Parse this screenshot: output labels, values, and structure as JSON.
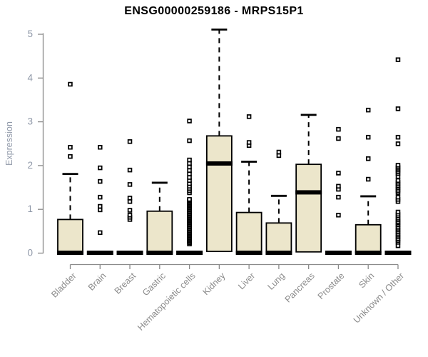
{
  "chart_data": {
    "type": "boxplot",
    "title": "ENSG00000259186 - MRPS15P1",
    "ylabel": "Expression",
    "xlabel": "",
    "ylim": [
      0,
      5
    ],
    "yticks": [
      0,
      1,
      2,
      3,
      4,
      5
    ],
    "grid": "off",
    "x_label_rotation": 45,
    "colors": {
      "box_fill": "#ECE6CB",
      "box_stroke": "#000000",
      "axis": "#8a8a8a",
      "y_tick_label": "#8f98a8",
      "x_tick_label": "#8a8a8a",
      "title": "#000000"
    },
    "categories": [
      "Bladder",
      "Brain",
      "Breast",
      "Gastric",
      "Hematopoietic cells",
      "Kidney",
      "Liver",
      "Lung",
      "Pancreas",
      "Prostate",
      "Skin",
      "Unknown / Other"
    ],
    "boxes": [
      {
        "category": "Bladder",
        "q1": 0,
        "median": 0,
        "q3": 0.76,
        "whisker_low": 0,
        "whisker_high": 1.8,
        "outliers": [
          2.2,
          2.41,
          3.85
        ]
      },
      {
        "category": "Brain",
        "q1": 0,
        "median": 0,
        "q3": 0,
        "whisker_low": 0,
        "whisker_high": 0,
        "outliers": [
          0.46,
          0.98,
          1.06,
          1.27,
          1.63,
          1.94,
          2.41
        ]
      },
      {
        "category": "Breast",
        "q1": 0,
        "median": 0,
        "q3": 0,
        "whisker_low": 0,
        "whisker_high": 0,
        "outliers": [
          0.76,
          0.81,
          0.86,
          0.97,
          1.17,
          1.25,
          1.56,
          1.89,
          2.54
        ]
      },
      {
        "category": "Gastric",
        "q1": 0,
        "median": 0,
        "q3": 0.95,
        "whisker_low": 0,
        "whisker_high": 1.6,
        "outliers": []
      },
      {
        "category": "Hematopoietic cells",
        "q1": 0,
        "median": 0,
        "q3": 0,
        "whisker_low": 0,
        "whisker_high": 0,
        "outliers": [
          0.2,
          0.23,
          0.25,
          0.28,
          0.3,
          0.33,
          0.35,
          0.38,
          0.4,
          0.43,
          0.45,
          0.48,
          0.5,
          0.53,
          0.55,
          0.58,
          0.6,
          0.63,
          0.65,
          0.68,
          0.7,
          0.73,
          0.75,
          0.78,
          0.8,
          0.83,
          0.85,
          0.88,
          0.9,
          0.93,
          0.95,
          0.98,
          1.0,
          1.03,
          1.05,
          1.08,
          1.1,
          1.13,
          1.15,
          1.18,
          1.2,
          1.22,
          1.37,
          1.42,
          1.47,
          1.52,
          1.58,
          1.65,
          1.72,
          1.8,
          1.88,
          1.96,
          2.04,
          2.12,
          2.56,
          3.01
        ]
      },
      {
        "category": "Kidney",
        "q1": 0.03,
        "median": 2.04,
        "q3": 2.67,
        "whisker_low": 0,
        "whisker_high": 5.1,
        "outliers": []
      },
      {
        "category": "Liver",
        "q1": 0,
        "median": 0,
        "q3": 0.92,
        "whisker_low": 0,
        "whisker_high": 2.08,
        "outliers": [
          2.45,
          2.52,
          3.11
        ]
      },
      {
        "category": "Lung",
        "q1": 0,
        "median": 0,
        "q3": 0.68,
        "whisker_low": 0,
        "whisker_high": 1.3,
        "outliers": [
          2.22,
          2.3
        ]
      },
      {
        "category": "Pancreas",
        "q1": 0.02,
        "median": 1.38,
        "q3": 2.02,
        "whisker_low": 0,
        "whisker_high": 3.15,
        "outliers": []
      },
      {
        "category": "Prostate",
        "q1": 0,
        "median": 0,
        "q3": 0,
        "whisker_low": 0,
        "whisker_high": 0,
        "outliers": [
          0.86,
          1.27,
          1.45,
          1.52,
          1.82,
          2.61,
          2.82
        ]
      },
      {
        "category": "Skin",
        "q1": 0,
        "median": 0,
        "q3": 0.64,
        "whisker_low": 0,
        "whisker_high": 1.29,
        "outliers": [
          1.68,
          2.15,
          2.64,
          3.26
        ]
      },
      {
        "category": "Unknown / Other",
        "q1": 0,
        "median": 0,
        "q3": 0,
        "whisker_low": 0,
        "whisker_high": 0,
        "outliers": [
          0.16,
          0.24,
          0.28,
          0.32,
          0.36,
          0.4,
          0.44,
          0.48,
          0.52,
          0.56,
          0.6,
          0.64,
          0.68,
          0.71,
          0.75,
          0.79,
          0.84,
          0.88,
          0.93,
          1.17,
          1.22,
          1.27,
          1.37,
          1.41,
          1.45,
          1.49,
          1.53,
          1.57,
          1.61,
          1.65,
          1.74,
          1.81,
          1.85,
          1.89,
          1.93,
          1.96,
          2.0,
          2.49,
          2.64,
          3.29,
          4.41
        ]
      }
    ]
  }
}
